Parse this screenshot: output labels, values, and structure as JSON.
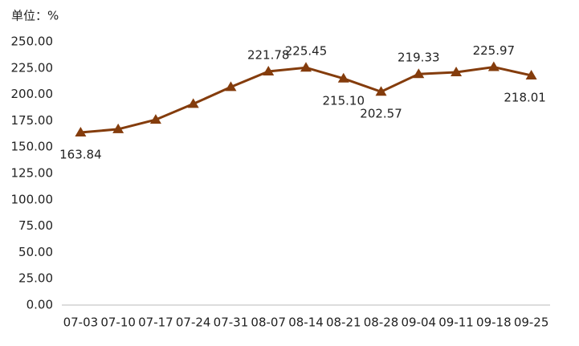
{
  "chart_data": {
    "type": "line",
    "unit_label": "单位：%",
    "categories": [
      "07-03",
      "07-10",
      "07-17",
      "07-24",
      "07-31",
      "08-07",
      "08-14",
      "08-21",
      "08-28",
      "09-04",
      "09-11",
      "09-18",
      "09-25"
    ],
    "series": [
      {
        "color": "#843c0c",
        "values": [
          163.84,
          167,
          176,
          191,
          207,
          221.78,
          225.45,
          215.1,
          202.57,
          219.33,
          221,
          225.97,
          218.01
        ],
        "value_labels": [
          "163.84",
          null,
          null,
          null,
          null,
          "221.78",
          "225.45",
          "215.10",
          "202.57",
          "219.33",
          null,
          "225.97",
          "218.01"
        ]
      }
    ],
    "ylim": [
      0,
      250
    ],
    "yticks": [
      {
        "value": 0,
        "label": "0.00"
      },
      {
        "value": 25,
        "label": "25.00"
      },
      {
        "value": 50,
        "label": "50.00"
      },
      {
        "value": 75,
        "label": "75.00"
      },
      {
        "value": 100,
        "label": "100.00"
      },
      {
        "value": 125,
        "label": "125.00"
      },
      {
        "value": 150,
        "label": "150.00"
      },
      {
        "value": 175,
        "label": "175.00"
      },
      {
        "value": 200,
        "label": "200.00"
      },
      {
        "value": 225,
        "label": "225.00"
      },
      {
        "value": 250,
        "label": "250.00"
      }
    ],
    "grid": false
  }
}
